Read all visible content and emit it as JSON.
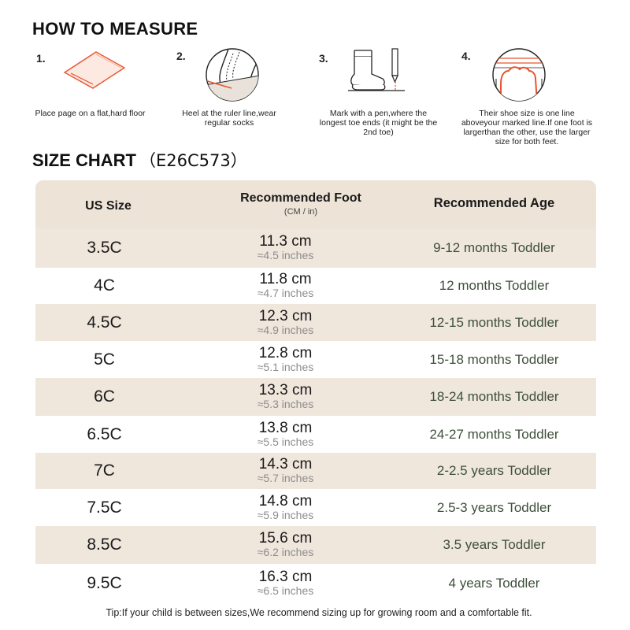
{
  "how_to_measure": {
    "title": "HOW TO MEASURE",
    "steps": [
      {
        "number": "1.",
        "text": "Place page on a flat,hard floor",
        "icon": "paper-on-floor-icon"
      },
      {
        "number": "2.",
        "text": "Heel at the ruler line,wear regular socks",
        "icon": "heel-on-ruler-icon"
      },
      {
        "number": "3.",
        "text": "Mark with a pen,where the longest toe ends (it might be the 2nd toe)",
        "icon": "sock-and-pen-icon"
      },
      {
        "number": "4.",
        "text": "Their shoe size is one line aboveyour marked line.If one foot is largerthan the other, use the larger size for both feet.",
        "icon": "toes-on-line-icon"
      }
    ],
    "accent_color": "#e8542c"
  },
  "size_chart": {
    "title": "SIZE CHART",
    "code": "（E26C573）",
    "headers": {
      "us_size": "US Size",
      "foot": "Recommended Foot",
      "foot_unit": "(CM / in)",
      "age": "Recommended Age"
    },
    "rows": [
      {
        "size": "3.5C",
        "cm": "11.3 cm",
        "inches": "≈4.5 inches",
        "age": "9-12 months Toddler"
      },
      {
        "size": "4C",
        "cm": "11.8 cm",
        "inches": "≈4.7 inches",
        "age": "12 months Toddler"
      },
      {
        "size": "4.5C",
        "cm": "12.3 cm",
        "inches": "≈4.9 inches",
        "age": "12-15 months Toddler"
      },
      {
        "size": "5C",
        "cm": "12.8 cm",
        "inches": "≈5.1 inches",
        "age": "15-18 months Toddler"
      },
      {
        "size": "6C",
        "cm": "13.3 cm",
        "inches": "≈5.3 inches",
        "age": "18-24 months Toddler"
      },
      {
        "size": "6.5C",
        "cm": "13.8 cm",
        "inches": "≈5.5 inches",
        "age": "24-27 months Toddler"
      },
      {
        "size": "7C",
        "cm": "14.3 cm",
        "inches": "≈5.7 inches",
        "age": "2-2.5 years Toddler"
      },
      {
        "size": "7.5C",
        "cm": "14.8 cm",
        "inches": "≈5.9 inches",
        "age": "2.5-3 years Toddler"
      },
      {
        "size": "8.5C",
        "cm": "15.6 cm",
        "inches": "≈6.2 inches",
        "age": "3.5 years Toddler"
      },
      {
        "size": "9.5C",
        "cm": "16.3 cm",
        "inches": "≈6.5 inches",
        "age": "4 years Toddler"
      }
    ],
    "colors": {
      "header_bg": "#ede3d7",
      "row_bg": "#efe6dc",
      "row_alt_bg": "#ffffff",
      "age_text": "#3d4f3a"
    }
  },
  "tip": "Tip:If your child is between sizes,We recommend sizing up for growing room and a comfortable fit."
}
